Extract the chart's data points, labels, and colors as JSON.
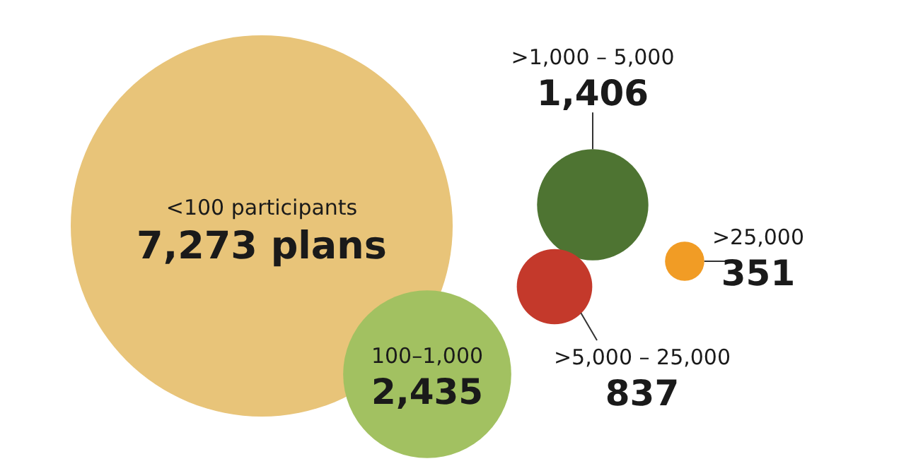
{
  "chart_data": {
    "type": "other",
    "categories": [
      "<100 participants",
      "100–1,000",
      ">1,000 – 5,000",
      ">5,000 – 25,000",
      ">25,000"
    ],
    "values": [
      7273,
      2435,
      1406,
      837,
      351
    ],
    "value_labels": [
      "7,273 plans",
      "2,435",
      "1,406",
      "837",
      "351"
    ],
    "colors": [
      "#e8c479",
      "#a2c161",
      "#4e7432",
      "#c4392b",
      "#f19c25"
    ]
  }
}
